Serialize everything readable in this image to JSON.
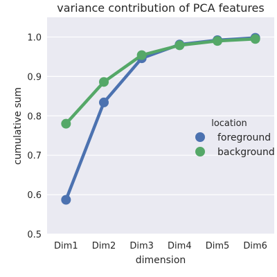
{
  "chart_data": {
    "type": "line",
    "title": "variance contribution of PCA features",
    "xlabel": "dimension",
    "ylabel": "cumulative sum",
    "categories": [
      "Dim1",
      "Dim2",
      "Dim3",
      "Dim4",
      "Dim5",
      "Dim6"
    ],
    "ylim": [
      0.5,
      1.05
    ],
    "yticks": [
      "0.5",
      "0.6",
      "0.7",
      "0.8",
      "0.9",
      "1.0"
    ],
    "grid": true,
    "legend": {
      "title": "location",
      "placement": "center-right"
    },
    "series": [
      {
        "name": "foreground",
        "color": "#4c72b0",
        "values": [
          0.587,
          0.834,
          0.946,
          0.981,
          0.992,
          0.998
        ]
      },
      {
        "name": "background",
        "color": "#55a868",
        "values": [
          0.78,
          0.886,
          0.954,
          0.979,
          0.99,
          0.995
        ]
      }
    ]
  }
}
